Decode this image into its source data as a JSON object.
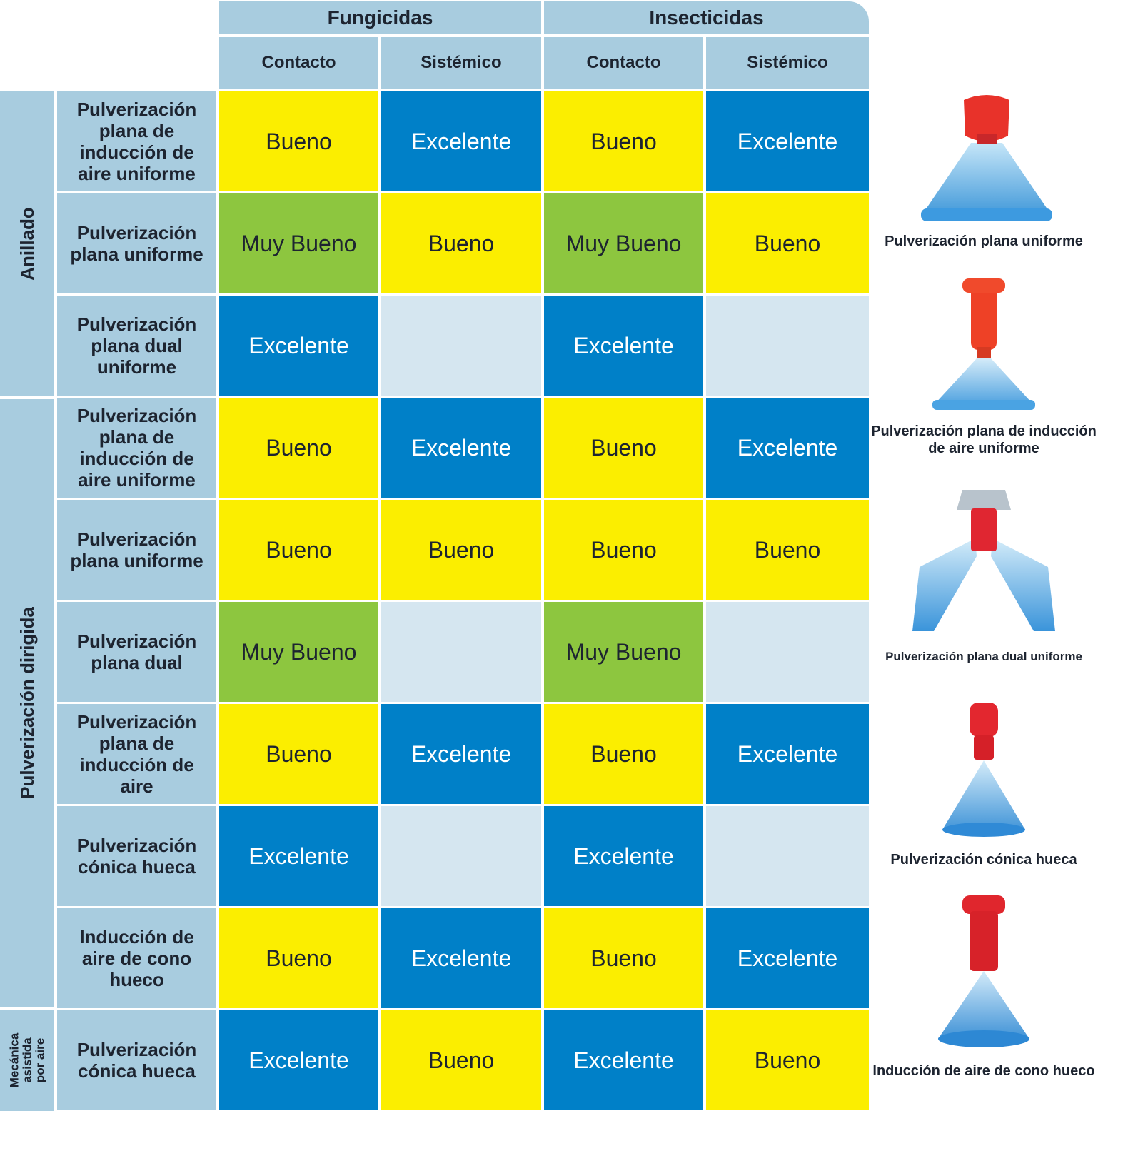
{
  "header": {
    "groups": [
      "Fungicidas",
      "Insecticidas"
    ],
    "sub": [
      "Contacto",
      "Sistémico",
      "Contacto",
      "Sistémico"
    ]
  },
  "groups": [
    {
      "label": "Anillado"
    },
    {
      "label": "Pulverización dirigida"
    },
    {
      "label": "Mecánica asistida por aire"
    }
  ],
  "rows": [
    {
      "label": "Pulverización plana de inducción de aire uniforme",
      "values": [
        "Bueno",
        "Excelente",
        "Bueno",
        "Excelente"
      ]
    },
    {
      "label": "Pulverización plana uniforme",
      "values": [
        "Muy Bueno",
        "Bueno",
        "Muy Bueno",
        "Bueno"
      ]
    },
    {
      "label": "Pulverización plana dual uniforme",
      "values": [
        "Excelente",
        "",
        "Excelente",
        ""
      ]
    },
    {
      "label": "Pulverización plana de inducción de aire uniforme",
      "values": [
        "Bueno",
        "Excelente",
        "Bueno",
        "Excelente"
      ]
    },
    {
      "label": "Pulverización plana uniforme",
      "values": [
        "Bueno",
        "Bueno",
        "Bueno",
        "Bueno"
      ]
    },
    {
      "label": "Pulverización plana dual",
      "values": [
        "Muy Bueno",
        "",
        "Muy Bueno",
        ""
      ]
    },
    {
      "label": "Pulverización plana de inducción de aire",
      "values": [
        "Bueno",
        "Excelente",
        "Bueno",
        "Excelente"
      ]
    },
    {
      "label": "Pulverización cónica hueca",
      "values": [
        "Excelente",
        "",
        "Excelente",
        ""
      ]
    },
    {
      "label": "Inducción de aire de cono hueco",
      "values": [
        "Bueno",
        "Excelente",
        "Bueno",
        "Excelente"
      ]
    },
    {
      "label": "Pulverización cónica hueca",
      "values": [
        "Excelente",
        "Bueno",
        "Excelente",
        "Bueno"
      ]
    }
  ],
  "nozzles": [
    {
      "icon": "flat-uniform-nozzle-icon",
      "caption": "Pulverización plana uniforme"
    },
    {
      "icon": "air-induction-flat-uniform-nozzle-icon",
      "caption": "Pulverización plana de inducción de aire uniforme"
    },
    {
      "icon": "dual-flat-uniform-nozzle-icon",
      "caption": "Pulverización plana dual uniforme"
    },
    {
      "icon": "hollow-cone-nozzle-icon",
      "caption": "Pulverización cónica hueca"
    },
    {
      "icon": "air-induction-hollow-cone-nozzle-icon",
      "caption": "Inducción de aire de cono hueco"
    }
  ],
  "colors": {
    "Excelente": "#0080c8",
    "Muy Bueno": "#8dc63f",
    "Bueno": "#fbee00",
    "empty": "#d5e6f0",
    "header": "#a8ccdf"
  }
}
